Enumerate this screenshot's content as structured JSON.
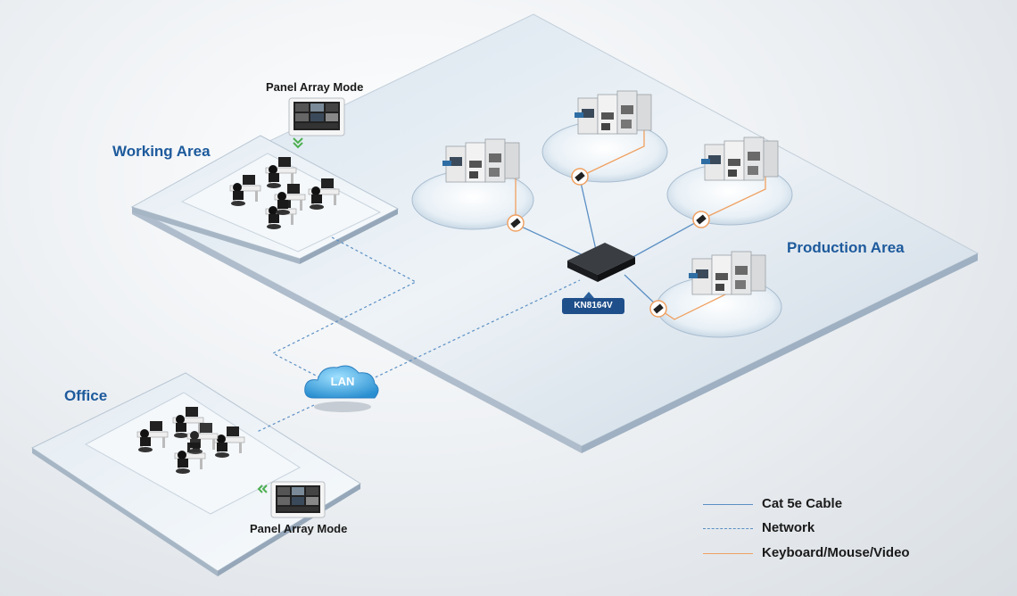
{
  "areas": {
    "working": "Working Area",
    "office": "Office",
    "production": "Production Area"
  },
  "panel_mode": {
    "top": "Panel Array Mode",
    "bottom": "Panel Array Mode"
  },
  "network": {
    "cloud_label": "LAN",
    "switch_label": "KN8164V"
  },
  "legend": {
    "items": [
      {
        "label": "Cat 5e Cable",
        "style": "solid",
        "color": "#5b8fc4"
      },
      {
        "label": "Network",
        "style": "dashed",
        "color": "#5b8fc4"
      },
      {
        "label": "Keyboard/Mouse/Video",
        "style": "solid",
        "color": "#f0a060"
      }
    ]
  },
  "colors": {
    "accent_blue": "#1d5a9c",
    "kvm_orange": "#f0a060",
    "cable_blue": "#5b8fc4"
  }
}
